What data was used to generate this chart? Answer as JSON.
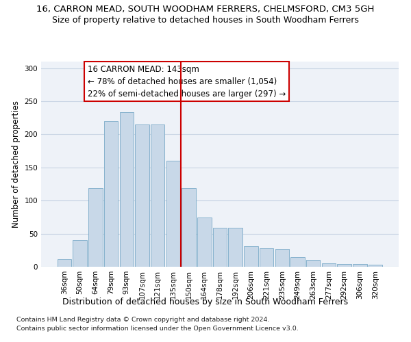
{
  "title": "16, CARRON MEAD, SOUTH WOODHAM FERRERS, CHELMSFORD, CM3 5GH",
  "subtitle": "Size of property relative to detached houses in South Woodham Ferrers",
  "xlabel": "Distribution of detached houses by size in South Woodham Ferrers",
  "ylabel": "Number of detached properties",
  "categories": [
    "36sqm",
    "50sqm",
    "64sqm",
    "79sqm",
    "93sqm",
    "107sqm",
    "121sqm",
    "135sqm",
    "150sqm",
    "164sqm",
    "178sqm",
    "192sqm",
    "206sqm",
    "221sqm",
    "235sqm",
    "249sqm",
    "263sqm",
    "277sqm",
    "292sqm",
    "306sqm",
    "320sqm"
  ],
  "values": [
    11,
    40,
    119,
    220,
    234,
    215,
    215,
    160,
    119,
    74,
    59,
    59,
    31,
    28,
    27,
    14,
    10,
    5,
    4,
    4,
    3
  ],
  "bar_color": "#c8d8e8",
  "bar_edge_color": "#7aaac8",
  "vline_color": "#cc0000",
  "annotation_box_text": "16 CARRON MEAD: 143sqm\n← 78% of detached houses are smaller (1,054)\n22% of semi-detached houses are larger (297) →",
  "annotation_box_facecolor": "white",
  "annotation_box_edgecolor": "#cc0000",
  "ylim": [
    0,
    310
  ],
  "yticks": [
    0,
    50,
    100,
    150,
    200,
    250,
    300
  ],
  "grid_color": "#c8d4e4",
  "background_color": "#eef2f8",
  "footnote1": "Contains HM Land Registry data © Crown copyright and database right 2024.",
  "footnote2": "Contains public sector information licensed under the Open Government Licence v3.0.",
  "title_fontsize": 9.5,
  "subtitle_fontsize": 9,
  "xlabel_fontsize": 9,
  "ylabel_fontsize": 8.5,
  "tick_fontsize": 7.5,
  "annotation_fontsize": 8.5,
  "footnote_fontsize": 6.8
}
